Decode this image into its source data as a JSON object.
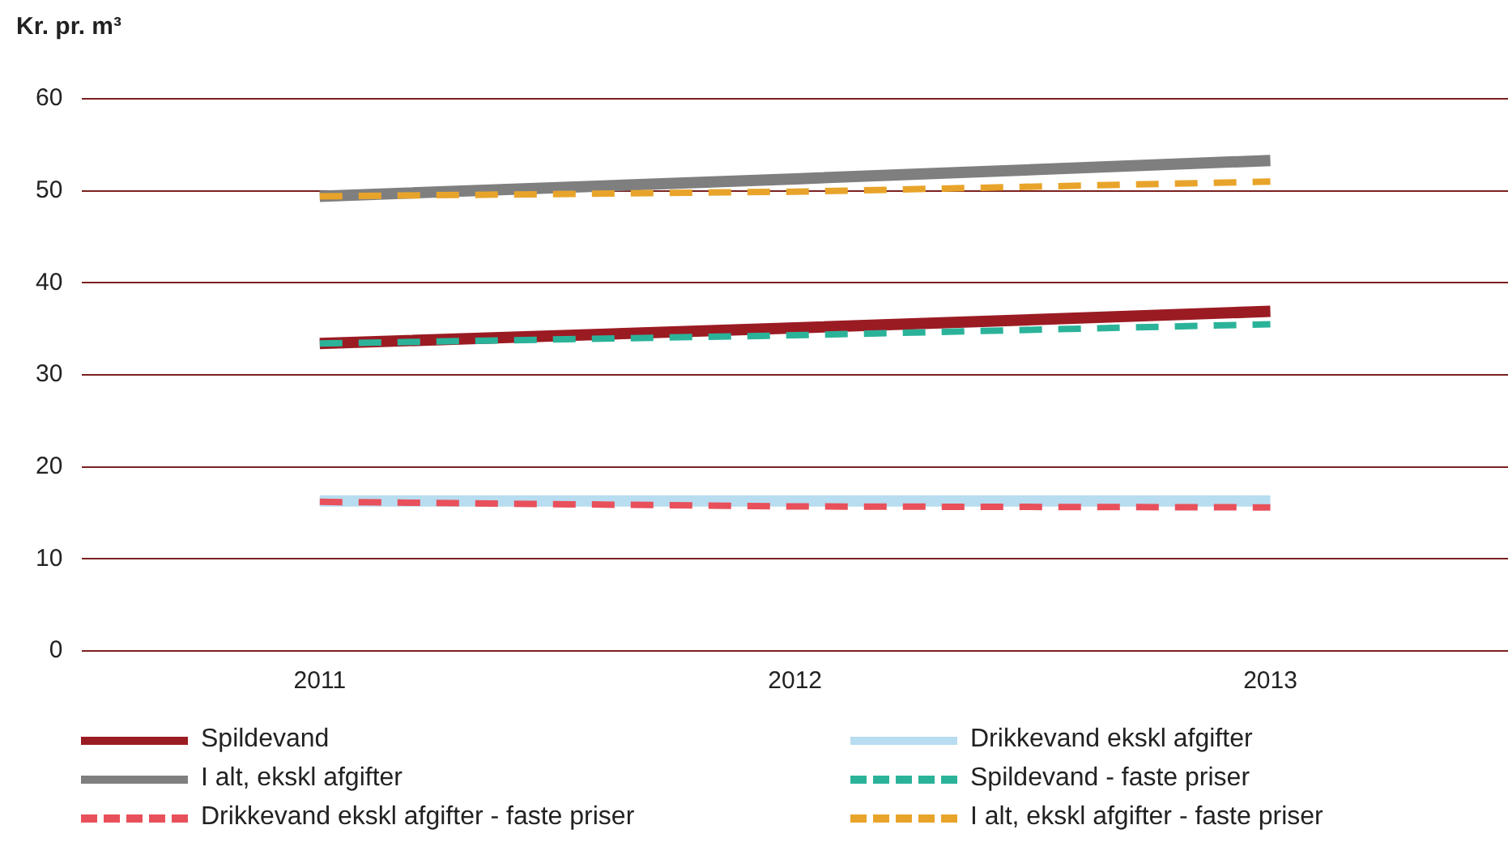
{
  "chart_data": {
    "type": "line",
    "ylabel": "Kr. pr. m³",
    "categories": [
      "2011",
      "2012",
      "2013"
    ],
    "series": [
      {
        "name": "Spildevand",
        "color": "#9b1b23",
        "values": [
          33.4,
          35.1,
          36.9
        ],
        "line_style": "solid"
      },
      {
        "name": "Drikkevand ekskl afgifter",
        "color": "#b8dcf0",
        "values": [
          16.3,
          16.3,
          16.3
        ],
        "line_style": "solid"
      },
      {
        "name": "I alt, ekskl afgifter",
        "color": "#7f7f7f",
        "values": [
          49.4,
          51.3,
          53.3
        ],
        "line_style": "solid"
      },
      {
        "name": "Spildevand - faste priser",
        "color": "#2bb39a",
        "values": [
          33.4,
          34.3,
          35.5
        ],
        "line_style": "dashed"
      },
      {
        "name": "Drikkevand ekskl afgifter - faste priser",
        "color": "#e8505b",
        "values": [
          16.2,
          15.7,
          15.6
        ],
        "line_style": "dashed"
      },
      {
        "name": "I alt, ekskl afgifter - faste priser",
        "color": "#e8a42a",
        "values": [
          49.4,
          49.9,
          51.0
        ],
        "line_style": "dashed"
      }
    ],
    "ylim": [
      0,
      60
    ],
    "yticks": [
      0,
      10,
      20,
      30,
      40,
      50,
      60
    ],
    "grid": "y",
    "legend": "bottom",
    "marker": "none"
  }
}
